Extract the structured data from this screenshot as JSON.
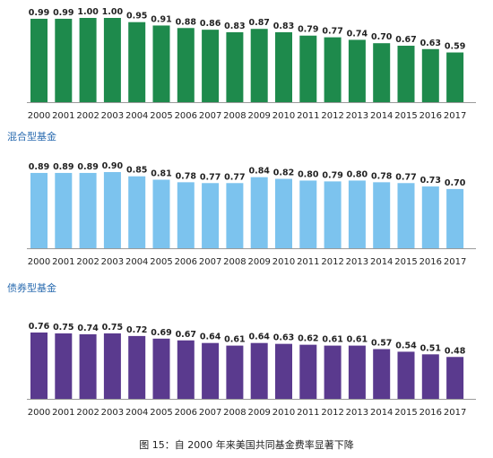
{
  "caption": "图 15：自 2000 年来美国共同基金费率显著下降",
  "chart_data": [
    {
      "type": "bar",
      "title": "",
      "color": "#1e8a4c",
      "categories": [
        "2000",
        "2001",
        "2002",
        "2003",
        "2004",
        "2005",
        "2006",
        "2007",
        "2008",
        "2009",
        "2010",
        "2011",
        "2012",
        "2013",
        "2014",
        "2015",
        "2016",
        "2017"
      ],
      "values": [
        0.99,
        0.99,
        1.0,
        1.0,
        0.95,
        0.91,
        0.88,
        0.86,
        0.83,
        0.87,
        0.83,
        0.79,
        0.77,
        0.74,
        0.7,
        0.67,
        0.63,
        0.59
      ],
      "value_labels": [
        "0.99",
        "0.99",
        "1.00",
        "1.00",
        "0.95",
        "0.91",
        "0.88",
        "0.86",
        "0.83",
        "0.87",
        "0.83",
        "0.79",
        "0.77",
        "0.74",
        "0.70",
        "0.67",
        "0.63",
        "0.59"
      ],
      "ylim": [
        0,
        1.0
      ]
    },
    {
      "type": "bar",
      "title": "混合型基金",
      "color": "#7cc3ee",
      "categories": [
        "2000",
        "2001",
        "2002",
        "2003",
        "2004",
        "2005",
        "2006",
        "2007",
        "2008",
        "2009",
        "2010",
        "2011",
        "2012",
        "2013",
        "2014",
        "2015",
        "2016",
        "2017"
      ],
      "values": [
        0.89,
        0.89,
        0.89,
        0.9,
        0.85,
        0.81,
        0.78,
        0.77,
        0.77,
        0.84,
        0.82,
        0.8,
        0.79,
        0.8,
        0.78,
        0.77,
        0.73,
        0.7
      ],
      "value_labels": [
        "0.89",
        "0.89",
        "0.89",
        "0.90",
        "0.85",
        "0.81",
        "0.78",
        "0.77",
        "0.77",
        "0.84",
        "0.82",
        "0.80",
        "0.79",
        "0.80",
        "0.78",
        "0.77",
        "0.73",
        "0.70"
      ],
      "ylim": [
        0,
        0.9
      ]
    },
    {
      "type": "bar",
      "title": "债券型基金",
      "color": "#5a3a8e",
      "categories": [
        "2000",
        "2001",
        "2002",
        "2003",
        "2004",
        "2005",
        "2006",
        "2007",
        "2008",
        "2009",
        "2010",
        "2011",
        "2012",
        "2013",
        "2014",
        "2015",
        "2016",
        "2017"
      ],
      "values": [
        0.76,
        0.75,
        0.74,
        0.75,
        0.72,
        0.69,
        0.67,
        0.64,
        0.61,
        0.64,
        0.63,
        0.62,
        0.61,
        0.61,
        0.57,
        0.54,
        0.51,
        0.48
      ],
      "value_labels": [
        "0.76",
        "0.75",
        "0.74",
        "0.75",
        "0.72",
        "0.69",
        "0.67",
        "0.64",
        "0.61",
        "0.64",
        "0.63",
        "0.62",
        "0.61",
        "0.61",
        "0.57",
        "0.54",
        "0.51",
        "0.48"
      ],
      "ylim": [
        0,
        0.76
      ]
    }
  ]
}
